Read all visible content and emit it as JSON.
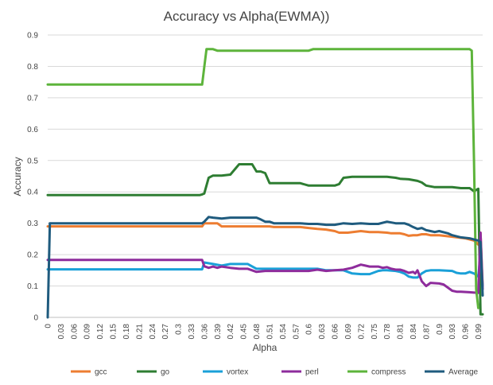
{
  "chart_data": {
    "type": "line",
    "title": "Accuracy vs Alpha(EWMA))",
    "xlabel": "Alpha",
    "ylabel": "Accuracy",
    "ylim": [
      0,
      0.9
    ],
    "yticks": [
      0,
      0.1,
      0.2,
      0.3,
      0.4,
      0.5,
      0.6,
      0.7,
      0.8,
      0.9
    ],
    "ytick_labels": [
      "0",
      "0.1",
      "0.2",
      "0.3",
      "0.4",
      "0.5",
      "0.6",
      "0.7",
      "0.8",
      "0.9"
    ],
    "xlim": [
      0,
      1.0
    ],
    "xticks": [
      0,
      0.03,
      0.06,
      0.09,
      0.12,
      0.15,
      0.18,
      0.21,
      0.24,
      0.27,
      0.3,
      0.33,
      0.36,
      0.39,
      0.42,
      0.45,
      0.48,
      0.51,
      0.54,
      0.57,
      0.6,
      0.63,
      0.66,
      0.69,
      0.72,
      0.75,
      0.78,
      0.81,
      0.84,
      0.87,
      0.9,
      0.93,
      0.96,
      0.99
    ],
    "xtick_labels": [
      "0",
      "0.03",
      "0.06",
      "0.09",
      "0.12",
      "0.15",
      "0.18",
      "0.21",
      "0.24",
      "0.27",
      "0.3",
      "0.33",
      "0.36",
      "0.39",
      "0.42",
      "0.45",
      "0.48",
      "0.51",
      "0.54",
      "0.57",
      "0.6",
      "0.63",
      "0.66",
      "0.69",
      "0.72",
      "0.75",
      "0.78",
      "0.81",
      "0.84",
      "0.87",
      "0.9",
      "0.93",
      "0.96",
      "0.99"
    ],
    "grid": true,
    "legend_position": "bottom",
    "series": [
      {
        "name": "gcc",
        "color": "#ed7d31",
        "x": [
          0,
          0.005,
          0.01,
          0.35,
          0.355,
          0.36,
          0.38,
          0.39,
          0.4,
          0.45,
          0.5,
          0.51,
          0.52,
          0.55,
          0.58,
          0.6,
          0.62,
          0.64,
          0.66,
          0.67,
          0.69,
          0.72,
          0.74,
          0.76,
          0.78,
          0.79,
          0.81,
          0.82,
          0.83,
          0.84,
          0.85,
          0.86,
          0.87,
          0.88,
          0.9,
          0.93,
          0.96,
          0.98,
          0.99,
          0.995,
          1.0
        ],
        "y": [
          0.29,
          0.29,
          0.29,
          0.29,
          0.29,
          0.3,
          0.3,
          0.3,
          0.29,
          0.29,
          0.29,
          0.29,
          0.288,
          0.288,
          0.288,
          0.285,
          0.282,
          0.28,
          0.275,
          0.27,
          0.27,
          0.275,
          0.272,
          0.272,
          0.27,
          0.268,
          0.268,
          0.265,
          0.26,
          0.262,
          0.262,
          0.265,
          0.265,
          0.262,
          0.262,
          0.257,
          0.252,
          0.245,
          0.232,
          0.27,
          0.1
        ]
      },
      {
        "name": "go",
        "color": "#2e7d32",
        "x": [
          0,
          0.005,
          0.01,
          0.35,
          0.355,
          0.36,
          0.37,
          0.38,
          0.4,
          0.42,
          0.44,
          0.46,
          0.47,
          0.48,
          0.49,
          0.5,
          0.51,
          0.52,
          0.58,
          0.6,
          0.62,
          0.66,
          0.67,
          0.68,
          0.7,
          0.72,
          0.76,
          0.78,
          0.8,
          0.81,
          0.83,
          0.85,
          0.86,
          0.87,
          0.89,
          0.9,
          0.93,
          0.95,
          0.97,
          0.98,
          0.99,
          0.995,
          1.0
        ],
        "y": [
          0.39,
          0.39,
          0.39,
          0.39,
          0.392,
          0.395,
          0.445,
          0.452,
          0.452,
          0.455,
          0.488,
          0.488,
          0.488,
          0.465,
          0.465,
          0.46,
          0.428,
          0.428,
          0.428,
          0.42,
          0.42,
          0.42,
          0.425,
          0.445,
          0.448,
          0.448,
          0.448,
          0.448,
          0.445,
          0.442,
          0.44,
          0.435,
          0.43,
          0.42,
          0.415,
          0.415,
          0.415,
          0.412,
          0.412,
          0.402,
          0.41,
          0.01,
          0.01
        ]
      },
      {
        "name": "vortex",
        "color": "#1aa0d8",
        "x": [
          0,
          0.005,
          0.01,
          0.35,
          0.355,
          0.36,
          0.38,
          0.4,
          0.42,
          0.44,
          0.46,
          0.48,
          0.5,
          0.51,
          0.52,
          0.6,
          0.62,
          0.64,
          0.66,
          0.68,
          0.7,
          0.72,
          0.74,
          0.76,
          0.77,
          0.78,
          0.8,
          0.81,
          0.82,
          0.83,
          0.84,
          0.85,
          0.86,
          0.87,
          0.88,
          0.9,
          0.93,
          0.94,
          0.95,
          0.96,
          0.97,
          0.98,
          0.99,
          0.995,
          1.0
        ],
        "y": [
          0.153,
          0.153,
          0.153,
          0.153,
          0.153,
          0.175,
          0.17,
          0.165,
          0.17,
          0.17,
          0.17,
          0.155,
          0.155,
          0.155,
          0.155,
          0.155,
          0.155,
          0.15,
          0.15,
          0.15,
          0.14,
          0.138,
          0.138,
          0.148,
          0.15,
          0.15,
          0.148,
          0.145,
          0.14,
          0.13,
          0.127,
          0.127,
          0.14,
          0.148,
          0.15,
          0.15,
          0.148,
          0.142,
          0.14,
          0.14,
          0.145,
          0.14,
          0.13,
          0.2,
          0.1
        ]
      },
      {
        "name": "perl",
        "color": "#8e2c9c",
        "x": [
          0,
          0.005,
          0.01,
          0.35,
          0.355,
          0.36,
          0.37,
          0.38,
          0.39,
          0.4,
          0.42,
          0.44,
          0.46,
          0.48,
          0.5,
          0.52,
          0.6,
          0.62,
          0.64,
          0.66,
          0.68,
          0.7,
          0.72,
          0.73,
          0.74,
          0.76,
          0.77,
          0.78,
          0.79,
          0.8,
          0.81,
          0.82,
          0.83,
          0.84,
          0.845,
          0.85,
          0.86,
          0.87,
          0.88,
          0.9,
          0.91,
          0.93,
          0.94,
          0.95,
          0.97,
          0.99,
          0.995,
          1.0
        ],
        "y": [
          0.183,
          0.183,
          0.183,
          0.183,
          0.183,
          0.163,
          0.158,
          0.162,
          0.158,
          0.162,
          0.158,
          0.155,
          0.155,
          0.145,
          0.148,
          0.148,
          0.148,
          0.152,
          0.148,
          0.15,
          0.152,
          0.158,
          0.168,
          0.165,
          0.162,
          0.162,
          0.158,
          0.16,
          0.155,
          0.152,
          0.152,
          0.148,
          0.142,
          0.145,
          0.14,
          0.15,
          0.115,
          0.1,
          0.11,
          0.108,
          0.105,
          0.085,
          0.082,
          0.082,
          0.08,
          0.078,
          0.27,
          0.09
        ]
      },
      {
        "name": "compress",
        "color": "#5db43b",
        "x": [
          0,
          0.005,
          0.01,
          0.35,
          0.355,
          0.36,
          0.365,
          0.37,
          0.38,
          0.39,
          0.45,
          0.5,
          0.55,
          0.6,
          0.61,
          0.7,
          0.8,
          0.9,
          0.97,
          0.975,
          0.98,
          0.985,
          0.99
        ],
        "y": [
          0.742,
          0.742,
          0.742,
          0.742,
          0.742,
          0.798,
          0.855,
          0.855,
          0.855,
          0.85,
          0.85,
          0.85,
          0.85,
          0.85,
          0.855,
          0.855,
          0.855,
          0.855,
          0.855,
          0.85,
          0.5,
          0.09,
          0.03
        ]
      },
      {
        "name": "Average",
        "color": "#1f5b7e",
        "x": [
          0,
          0.005,
          0.01,
          0.35,
          0.355,
          0.36,
          0.37,
          0.38,
          0.4,
          0.42,
          0.44,
          0.46,
          0.48,
          0.49,
          0.5,
          0.51,
          0.52,
          0.58,
          0.6,
          0.62,
          0.64,
          0.66,
          0.68,
          0.7,
          0.72,
          0.74,
          0.76,
          0.78,
          0.8,
          0.82,
          0.83,
          0.84,
          0.85,
          0.86,
          0.87,
          0.88,
          0.89,
          0.9,
          0.92,
          0.93,
          0.95,
          0.97,
          0.99,
          0.995,
          1.0
        ],
        "y": [
          0.0,
          0.3,
          0.3,
          0.3,
          0.3,
          0.305,
          0.32,
          0.318,
          0.315,
          0.318,
          0.318,
          0.318,
          0.318,
          0.312,
          0.305,
          0.305,
          0.3,
          0.3,
          0.298,
          0.298,
          0.295,
          0.295,
          0.3,
          0.298,
          0.3,
          0.298,
          0.298,
          0.305,
          0.3,
          0.3,
          0.295,
          0.288,
          0.282,
          0.285,
          0.278,
          0.275,
          0.272,
          0.275,
          0.268,
          0.262,
          0.255,
          0.252,
          0.245,
          0.24,
          0.07
        ]
      }
    ]
  }
}
